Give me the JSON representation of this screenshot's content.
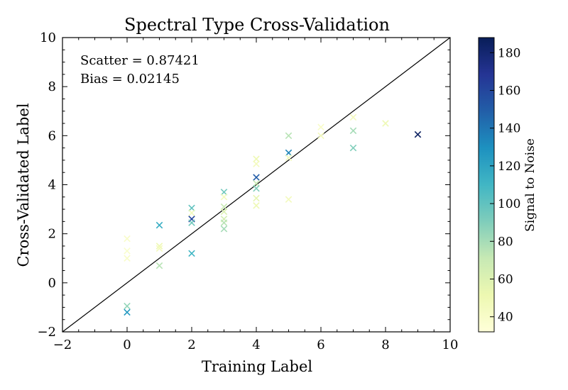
{
  "chart_data": {
    "type": "scatter",
    "title": "Spectral Type Cross-Validation",
    "xlabel": "Training Label",
    "ylabel": "Cross-Validated Label",
    "xlim": [
      -2,
      10
    ],
    "ylim": [
      -2,
      10
    ],
    "xticks": [
      -2,
      0,
      2,
      4,
      6,
      8,
      10
    ],
    "yticks": [
      -2,
      0,
      2,
      4,
      6,
      8,
      10
    ],
    "grid": false,
    "annotations": [
      "Scatter = 0.87421",
      "Bias = 0.02145"
    ],
    "reference_line": "y = x",
    "marker": "x",
    "colorbar": {
      "label": "Signal to Noise",
      "range": [
        32,
        188
      ],
      "ticks": [
        40,
        60,
        80,
        100,
        120,
        140,
        160,
        180
      ],
      "colormap": "YlGnBu"
    },
    "points": [
      {
        "x": 0,
        "y": 1.8,
        "c": 40
      },
      {
        "x": 0,
        "y": 1.3,
        "c": 38
      },
      {
        "x": 0,
        "y": 1.0,
        "c": 40
      },
      {
        "x": 0,
        "y": -0.95,
        "c": 85
      },
      {
        "x": 0,
        "y": -1.2,
        "c": 125
      },
      {
        "x": 1,
        "y": 2.35,
        "c": 115
      },
      {
        "x": 1,
        "y": 1.5,
        "c": 50
      },
      {
        "x": 1,
        "y": 1.4,
        "c": 45
      },
      {
        "x": 1,
        "y": 0.7,
        "c": 75
      },
      {
        "x": 2,
        "y": 3.05,
        "c": 100
      },
      {
        "x": 2,
        "y": 2.85,
        "c": 45
      },
      {
        "x": 2,
        "y": 2.6,
        "c": 160
      },
      {
        "x": 2,
        "y": 2.45,
        "c": 95
      },
      {
        "x": 2,
        "y": 1.2,
        "c": 110
      },
      {
        "x": 3,
        "y": 3.7,
        "c": 95
      },
      {
        "x": 3,
        "y": 3.5,
        "c": 45
      },
      {
        "x": 3,
        "y": 3.1,
        "c": 70
      },
      {
        "x": 3,
        "y": 2.9,
        "c": 60
      },
      {
        "x": 3,
        "y": 2.6,
        "c": 65
      },
      {
        "x": 3,
        "y": 2.45,
        "c": 75
      },
      {
        "x": 3,
        "y": 2.2,
        "c": 80
      },
      {
        "x": 4,
        "y": 5.05,
        "c": 50
      },
      {
        "x": 4,
        "y": 4.85,
        "c": 45
      },
      {
        "x": 4,
        "y": 4.3,
        "c": 150
      },
      {
        "x": 4,
        "y": 4.05,
        "c": 70
      },
      {
        "x": 4,
        "y": 3.85,
        "c": 90
      },
      {
        "x": 4,
        "y": 3.45,
        "c": 55
      },
      {
        "x": 4,
        "y": 3.15,
        "c": 50
      },
      {
        "x": 5,
        "y": 6.0,
        "c": 75
      },
      {
        "x": 5,
        "y": 5.3,
        "c": 135
      },
      {
        "x": 5,
        "y": 5.1,
        "c": 45
      },
      {
        "x": 5,
        "y": 3.4,
        "c": 45
      },
      {
        "x": 6,
        "y": 6.35,
        "c": 40
      },
      {
        "x": 6,
        "y": 6.0,
        "c": 45
      },
      {
        "x": 7,
        "y": 6.75,
        "c": 45
      },
      {
        "x": 7,
        "y": 6.2,
        "c": 80
      },
      {
        "x": 7,
        "y": 5.5,
        "c": 90
      },
      {
        "x": 8,
        "y": 6.5,
        "c": 50
      },
      {
        "x": 9,
        "y": 6.05,
        "c": 185
      }
    ]
  }
}
